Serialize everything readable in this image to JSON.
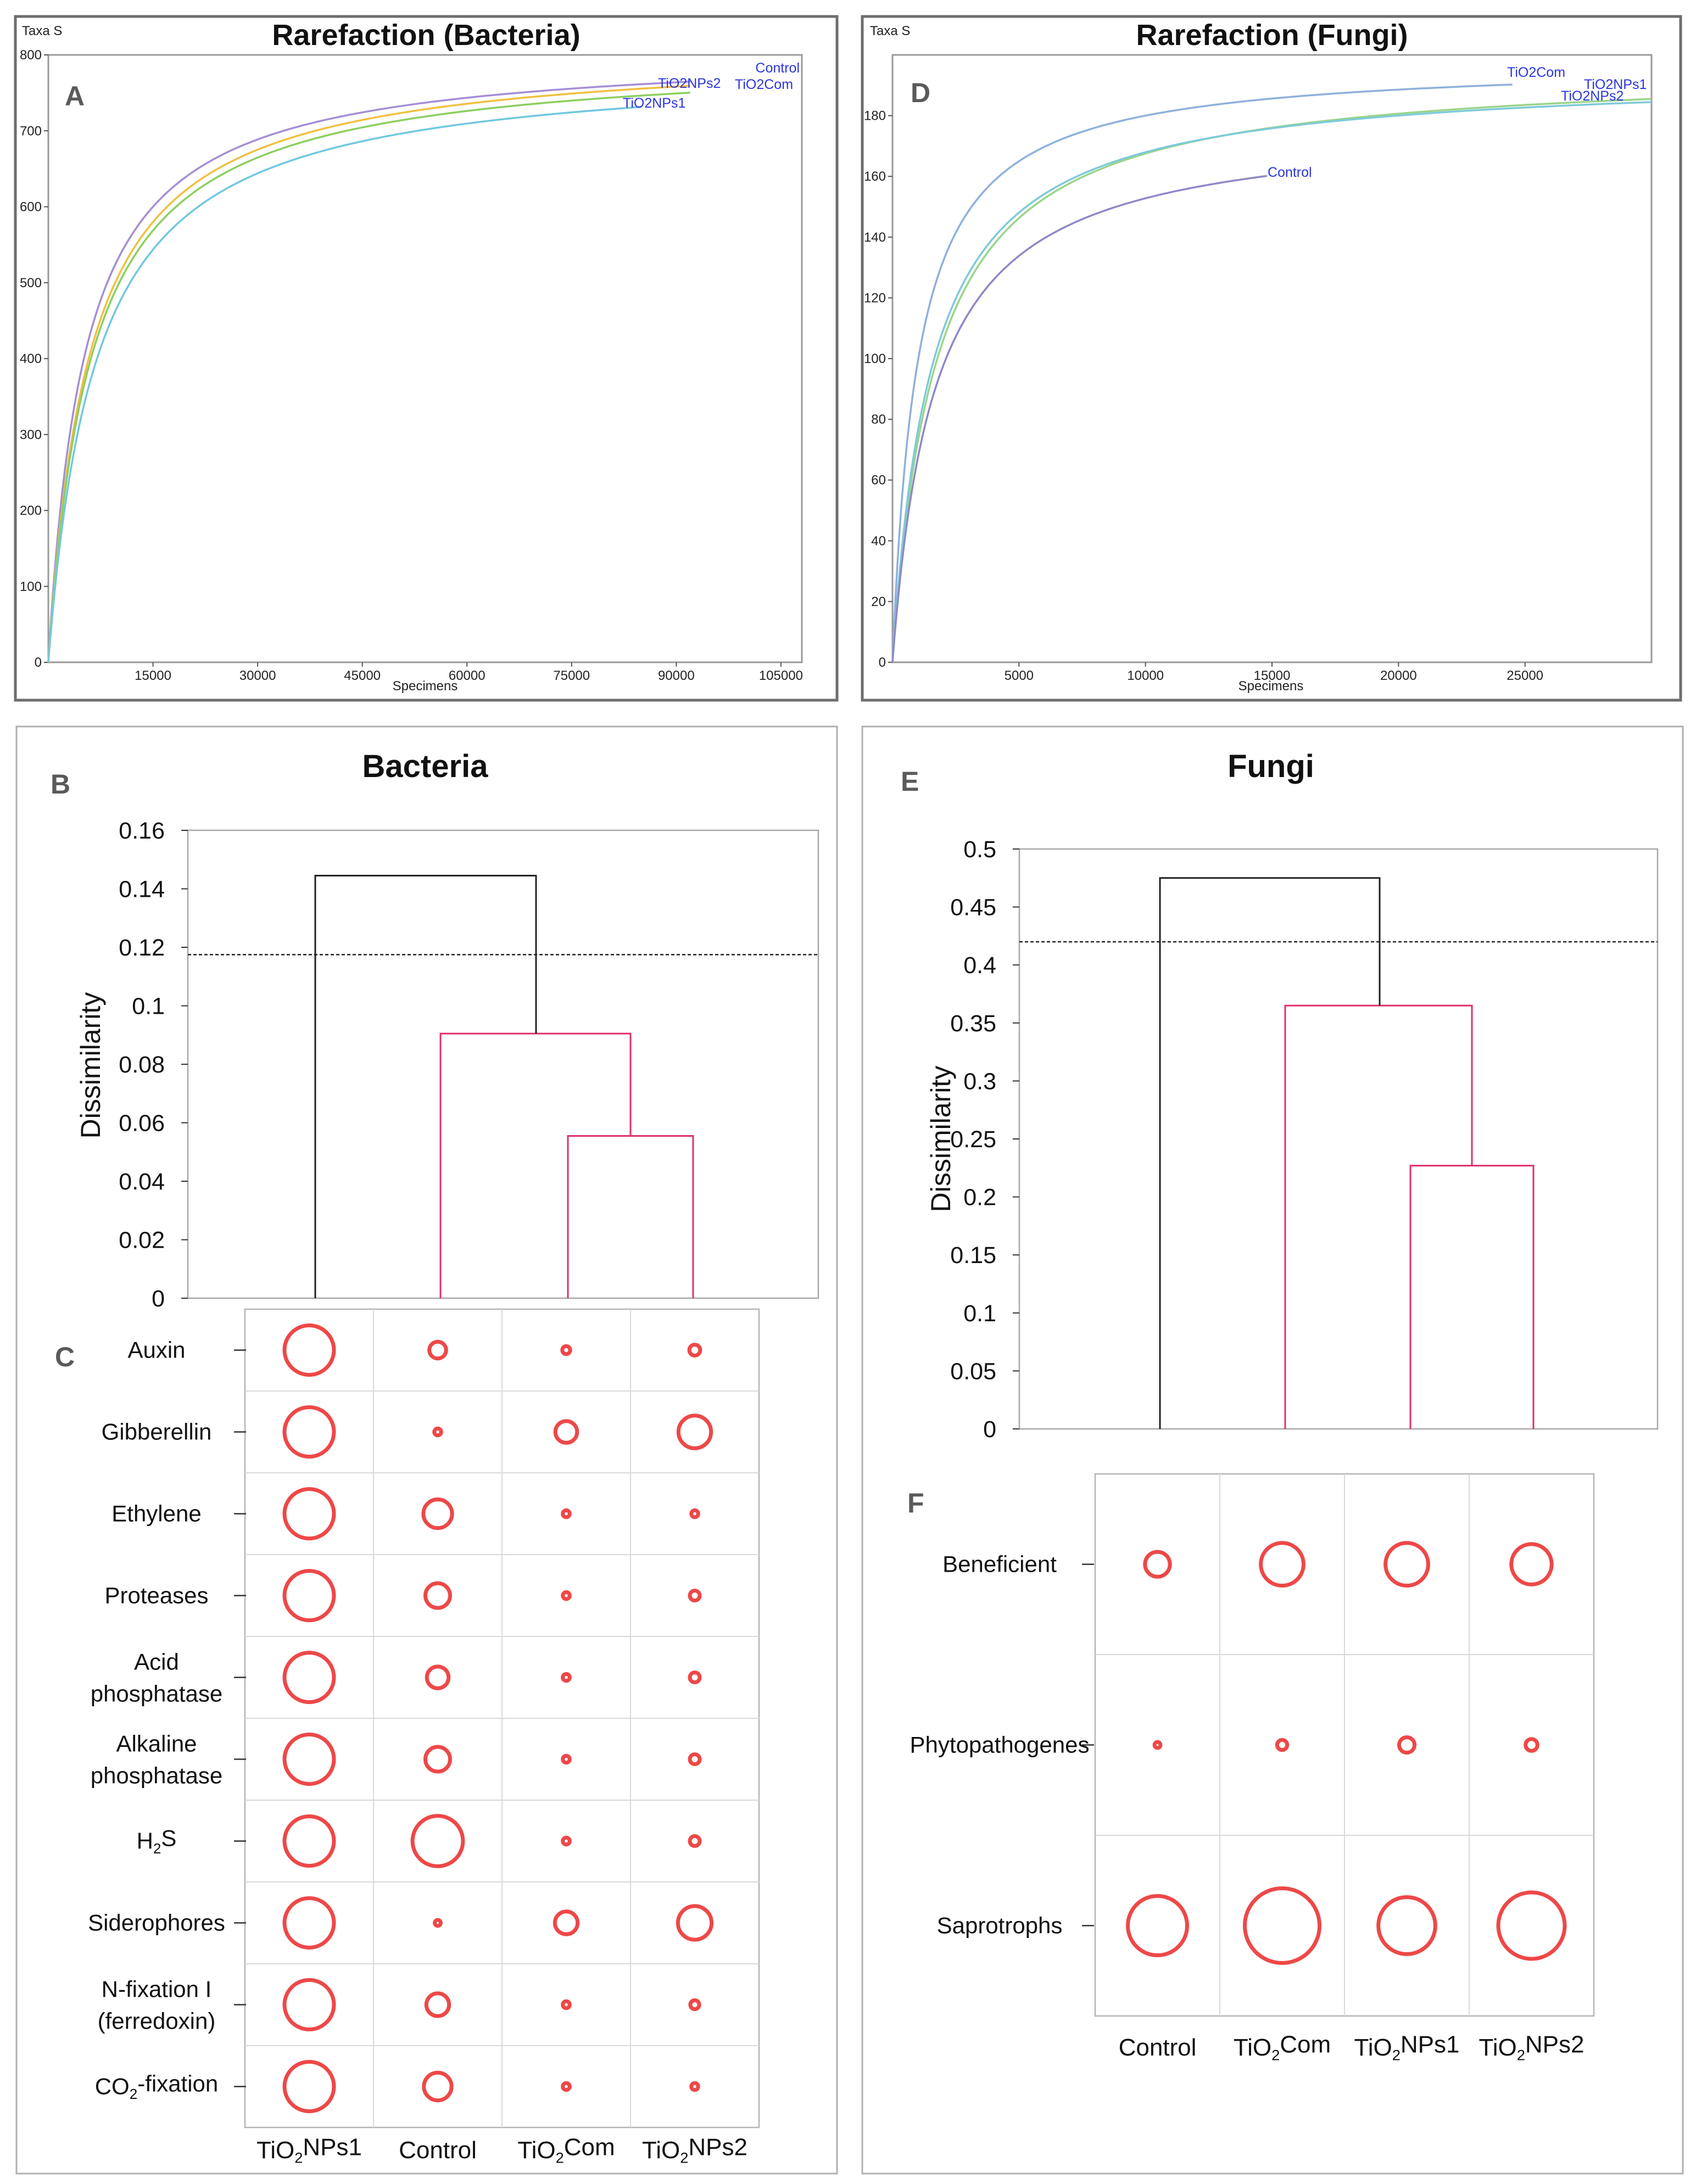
{
  "panels": {
    "A": {
      "letter": "A",
      "title": "Rarefaction (Bacteria)",
      "ylabel": "Taxa S",
      "xlabel": "Specimens",
      "chart_data": {
        "type": "line",
        "title": "Rarefaction (Bacteria)",
        "xlabel": "Specimens",
        "ylabel": "Taxa S",
        "xlim": [
          0,
          108000
        ],
        "ylim": [
          0,
          800
        ],
        "xticks": [
          15000,
          30000,
          45000,
          60000,
          75000,
          90000,
          105000
        ],
        "yticks": [
          0,
          100,
          200,
          300,
          400,
          500,
          600,
          700,
          800
        ],
        "series": [
          {
            "name": "Control",
            "color": "#a58ed6",
            "xmax": 92000,
            "asymptote": 808,
            "half": 5200
          },
          {
            "name": "TiO2NPs2",
            "color": "#f0c040",
            "xmax": 92000,
            "asymptote": 808,
            "half": 5900
          },
          {
            "name": "TiO2Com",
            "color": "#8ccf60",
            "xmax": 92000,
            "asymptote": 800,
            "half": 6100
          },
          {
            "name": "TiO2NPs1",
            "color": "#72c8e0",
            "xmax": 85000,
            "asymptote": 790,
            "half": 6800
          }
        ]
      }
    },
    "D": {
      "letter": "D",
      "title": "Rarefaction (Fungi)",
      "ylabel": "Taxa S",
      "xlabel": "Specimens",
      "chart_data": {
        "type": "line",
        "title": "Rarefaction (Fungi)",
        "xlabel": "Specimens",
        "ylabel": "Taxa S",
        "xlim": [
          0,
          30000
        ],
        "ylim": [
          0,
          200
        ],
        "xticks": [
          5000,
          10000,
          15000,
          20000,
          25000
        ],
        "yticks": [
          0,
          20,
          40,
          60,
          80,
          100,
          120,
          140,
          160,
          180
        ],
        "series": [
          {
            "name": "TiO2Com",
            "color": "#8fb0dc",
            "xmax": 24500,
            "asymptote": 198,
            "half": 1000
          },
          {
            "name": "TiO2NPs1",
            "color": "#9ad48a",
            "xmax": 30000,
            "asymptote": 196,
            "half": 1700
          },
          {
            "name": "TiO2NPs2",
            "color": "#7ecad8",
            "xmax": 30000,
            "asymptote": 194,
            "half": 1550
          },
          {
            "name": "Control",
            "color": "#8e88c8",
            "xmax": 14800,
            "asymptote": 178,
            "half": 1650
          }
        ]
      }
    },
    "B": {
      "letter": "B",
      "title": "Bacteria",
      "ylabel": "Dissimilarity",
      "chart_data": {
        "type": "dendrogram",
        "title": "Bacteria",
        "ylabel": "Dissimilarity",
        "ylim": [
          0,
          0.16
        ],
        "yticks": [
          "0",
          "0.02",
          "0.04",
          "0.06",
          "0.08",
          "0.1",
          "0.12",
          "0.14",
          "0.16"
        ],
        "threshold": 0.1175,
        "leaves": [
          "TiO2NPs1",
          "Control",
          "TiO2Com",
          "TiO2NPs2"
        ],
        "merges": [
          {
            "left": "TiO2Com",
            "right": "TiO2NPs2",
            "height": 0.0555,
            "color": "#e0306a"
          },
          {
            "left": "Control",
            "right": "TiO2Com+TiO2NPs2",
            "height": 0.0905,
            "color": "#e0306a"
          },
          {
            "left": "TiO2NPs1",
            "right": "Control+TiO2Com+TiO2NPs2",
            "height": 0.1445,
            "color": "#222222"
          }
        ]
      }
    },
    "E": {
      "letter": "E",
      "title": "Fungi",
      "ylabel": "Dissimilarity",
      "chart_data": {
        "type": "dendrogram",
        "title": "Fungi",
        "ylabel": "Dissimilarity",
        "ylim": [
          0,
          0.5
        ],
        "yticks": [
          "0",
          "0.05",
          "0.1",
          "0.15",
          "0.2",
          "0.25",
          "0.3",
          "0.35",
          "0.4",
          "0.45",
          "0.5"
        ],
        "threshold": 0.42,
        "leaves": [
          "Control",
          "TiO2Com",
          "TiO2NPs1",
          "TiO2NPs2"
        ],
        "merges": [
          {
            "left": "TiO2NPs1",
            "right": "TiO2NPs2",
            "height": 0.227,
            "color": "#e0306a"
          },
          {
            "left": "TiO2Com",
            "right": "TiO2NPs1+TiO2NPs2",
            "height": 0.365,
            "color": "#e0306a"
          },
          {
            "left": "Control",
            "right": "TiO2Com+TiO2NPs1+TiO2NPs2",
            "height": 0.475,
            "color": "#222222"
          }
        ]
      }
    },
    "C": {
      "letter": "C",
      "chart_data": {
        "type": "bubble",
        "columns": [
          "TiO2NPs1",
          "Control",
          "TiO2Com",
          "TiO2NPs2"
        ],
        "rows": [
          "Auxin",
          "Gibberellin",
          "Ethylene",
          "Proteases",
          "Acid phosphatase",
          "Alkaline phosphatase",
          "H2S",
          "Siderophores",
          "N-fixation I (ferredoxin)",
          "CO2-fixation"
        ],
        "values": [
          [
            1.0,
            0.34,
            0.16,
            0.22
          ],
          [
            1.0,
            0.14,
            0.44,
            0.66
          ],
          [
            1.0,
            0.58,
            0.14,
            0.14
          ],
          [
            1.0,
            0.5,
            0.14,
            0.2
          ],
          [
            1.0,
            0.44,
            0.14,
            0.2
          ],
          [
            1.0,
            0.5,
            0.14,
            0.2
          ],
          [
            1.0,
            1.02,
            0.14,
            0.2
          ],
          [
            1.0,
            0.12,
            0.46,
            0.68
          ],
          [
            1.0,
            0.46,
            0.14,
            0.18
          ],
          [
            1.0,
            0.56,
            0.14,
            0.14
          ]
        ]
      }
    },
    "F": {
      "letter": "F",
      "chart_data": {
        "type": "bubble",
        "columns": [
          "Control",
          "TiO2Com",
          "TiO2NPs1",
          "TiO2NPs2"
        ],
        "rows": [
          "Beneficient",
          "Phytopathogenes",
          "Saprotrophs"
        ],
        "values": [
          [
            0.42,
            0.72,
            0.72,
            0.68
          ],
          [
            0.1,
            0.17,
            0.26,
            0.2
          ],
          [
            1.0,
            1.26,
            0.96,
            1.12
          ]
        ]
      }
    }
  },
  "labels": {
    "C_rows": [
      {
        "line1": "Auxin"
      },
      {
        "line1": "Gibberellin"
      },
      {
        "line1": "Ethylene"
      },
      {
        "line1": "Proteases"
      },
      {
        "line1": "Acid",
        "line2": "phosphatase"
      },
      {
        "line1": "Alkaline",
        "line2": "phosphatase"
      },
      {
        "prefix": "H",
        "sub": "2",
        "suffix": "S"
      },
      {
        "line1": "Siderophores"
      },
      {
        "line1": "N-fixation I",
        "line2": "(ferredoxin)"
      },
      {
        "prefix": "CO",
        "sub": "2",
        "suffix": "-fixation"
      }
    ],
    "C_cols": [
      {
        "prefix": "TiO",
        "sub": "2",
        "suffix": "NPs1"
      },
      {
        "prefix": "Control",
        "sub": "",
        "suffix": ""
      },
      {
        "prefix": "TiO",
        "sub": "2",
        "suffix": "Com"
      },
      {
        "prefix": "TiO",
        "sub": "2",
        "suffix": "NPs2"
      }
    ],
    "F_rows": [
      {
        "line1": "Beneficient"
      },
      {
        "line1": "Phytopathogenes"
      },
      {
        "line1": "Saprotrophs"
      }
    ],
    "F_cols": [
      {
        "prefix": "Control",
        "sub": "",
        "suffix": ""
      },
      {
        "prefix": "TiO",
        "sub": "2",
        "suffix": "Com"
      },
      {
        "prefix": "TiO",
        "sub": "2",
        "suffix": "NPs1"
      },
      {
        "prefix": "TiO",
        "sub": "2",
        "suffix": "NPs2"
      }
    ]
  }
}
